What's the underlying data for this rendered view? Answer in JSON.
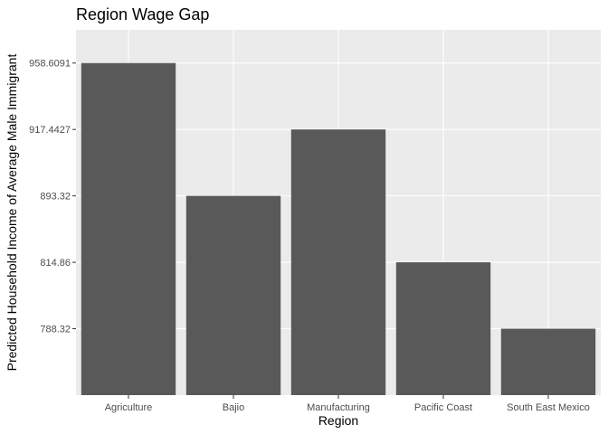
{
  "chart_data": {
    "type": "bar",
    "title": "Region Wage Gap",
    "xlabel": "Region",
    "ylabel": "Predicted Household Income of Average Male Immigrant",
    "categories": [
      "Agriculture",
      "Bajio",
      "Manufacturing",
      "Pacific Coast",
      "South East Mexico"
    ],
    "values": [
      "958.6091",
      "893.32",
      "917.4427",
      "814.86",
      "788.32"
    ],
    "y_ticks": [
      "788.32",
      "814.86",
      "893.32",
      "917.4427",
      "958.6091"
    ],
    "grid": true,
    "y_scale": "discrete-ordered"
  },
  "colors": {
    "bar_fill": "#595959",
    "panel_bg": "#ebebeb",
    "grid_major": "#ffffff"
  }
}
